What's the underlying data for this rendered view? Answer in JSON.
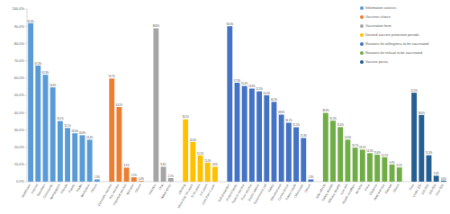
{
  "chart_data": {
    "type": "bar",
    "grid": false,
    "data_labels": true,
    "legend": "upper right",
    "ylim": [
      0,
      100
    ],
    "yticks": [
      {
        "value": 0,
        "label": "0.0%"
      },
      {
        "value": 10,
        "label": "10.0%"
      },
      {
        "value": 20,
        "label": "20.0%"
      },
      {
        "value": 30,
        "label": "30.0%"
      },
      {
        "value": 40,
        "label": "40.0%"
      },
      {
        "value": 50,
        "label": "50.0%"
      },
      {
        "value": 60,
        "label": "60.0%"
      },
      {
        "value": 70,
        "label": "70.0%"
      },
      {
        "value": 80,
        "label": "80.0%"
      },
      {
        "value": 90,
        "label": "90.0%"
      },
      {
        "value": 100,
        "label": "100.0%"
      }
    ],
    "series": [
      {
        "name": "Information sources",
        "color": "#5b9bd5",
        "categories": [
          "Healthcare",
          "Internet",
          "Television",
          "Community",
          "Newspapers",
          "Friends",
          "Family",
          "Radio",
          "Workplace",
          "Others"
        ],
        "values": [
          91.8,
          67.3,
          61.9,
          54.6,
          35.1,
          31.1,
          28.0,
          26.9,
          24.3,
          1.3
        ],
        "value_labels": [
          "91.8%",
          "67.3%",
          "61.9%",
          "54.6%",
          "35.1%",
          "31.1%",
          "28.0%",
          "26.9%",
          "24.3%",
          "1.3%"
        ]
      },
      {
        "name": "Vaccines choice",
        "color": "#ed7d31",
        "categories": [
          "Domestic vaccine",
          "Any vaccine",
          "Imported vaccine",
          "Not sure",
          "Others"
        ],
        "values": [
          59.7,
          43.2,
          8.1,
          2.5,
          0.4
        ],
        "value_labels": [
          "59.7%",
          "43.2%",
          "8.1%",
          "2.5%",
          "0.4%"
        ]
      },
      {
        "name": "Vaccination form",
        "color": "#a5a5a5",
        "categories": [
          "Injection",
          "Oral",
          "Nasal spray"
        ],
        "values": [
          88.8,
          8.6,
          2.1
        ],
        "value_labels": [
          "88.8%",
          "8.6%",
          "2.1%"
        ]
      },
      {
        "name": "Desired vaccine protection periods",
        "color": "#ffc000",
        "categories": [
          "Lifelong",
          "More than 10 years",
          "5-10 years",
          "1-5 years",
          "Less than 1 year"
        ],
        "values": [
          36.1,
          23.0,
          15.2,
          11.0,
          8.6
        ],
        "value_labels": [
          "36.1%",
          "23.0%",
          "15.2%",
          "11.0%",
          "8.6%"
        ]
      },
      {
        "name": "Reasons for willingness to be vaccinated",
        "color": "#4472c4",
        "categories": [
          "Self-protection",
          "Protect family",
          "Trust in vaccine",
          "Free vaccine",
          "Doctor advice",
          "Government call",
          "Safety",
          "Effectiveness",
          "Convenience",
          "Travel needs",
          "Others join",
          "Others"
        ],
        "values": [
          90.0,
          57.3,
          55.4,
          53.9,
          52.3,
          50.0,
          46.2,
          38.8,
          34.1,
          31.5,
          25.3,
          1.3
        ],
        "value_labels": [
          "90.0%",
          "57.3%",
          "55.4%",
          "53.9%",
          "52.3%",
          "50.0%",
          "46.2%",
          "38.8%",
          "34.1%",
          "31.5%",
          "25.3%",
          "1.3%"
        ]
      },
      {
        "name": "Reasons for refusal to be vaccinated",
        "color": "#70ad47",
        "categories": [
          "Side effects",
          "Safety doubts",
          "Efficacy doubts",
          "Low risk",
          "Health condition",
          "No time",
          "Price",
          "Distance",
          "Wait and see",
          "Distrust",
          "Others"
        ],
        "values": [
          39.8,
          35.3,
          31.6,
          24.3,
          19.7,
          18.5,
          16.5,
          15.6,
          14.1,
          9.9,
          8.2
        ],
        "value_labels": [
          "39.8%",
          "35.3%",
          "31.6%",
          "24.3%",
          "19.7%",
          "18.5%",
          "16.5%",
          "15.6%",
          "14.1%",
          "9.9%",
          "8.2%"
        ]
      },
      {
        "name": "Vaccine prices",
        "color": "#255e91",
        "categories": [
          "Free",
          "Under 100",
          "100-200",
          "200-500",
          "Over 500"
        ],
        "values": [
          51.5,
          38.6,
          15.3,
          3.4,
          0.6
        ],
        "value_labels": [
          "51.5%",
          "38.6%",
          "15.3%",
          "3.4%",
          "0.6%"
        ]
      }
    ]
  }
}
